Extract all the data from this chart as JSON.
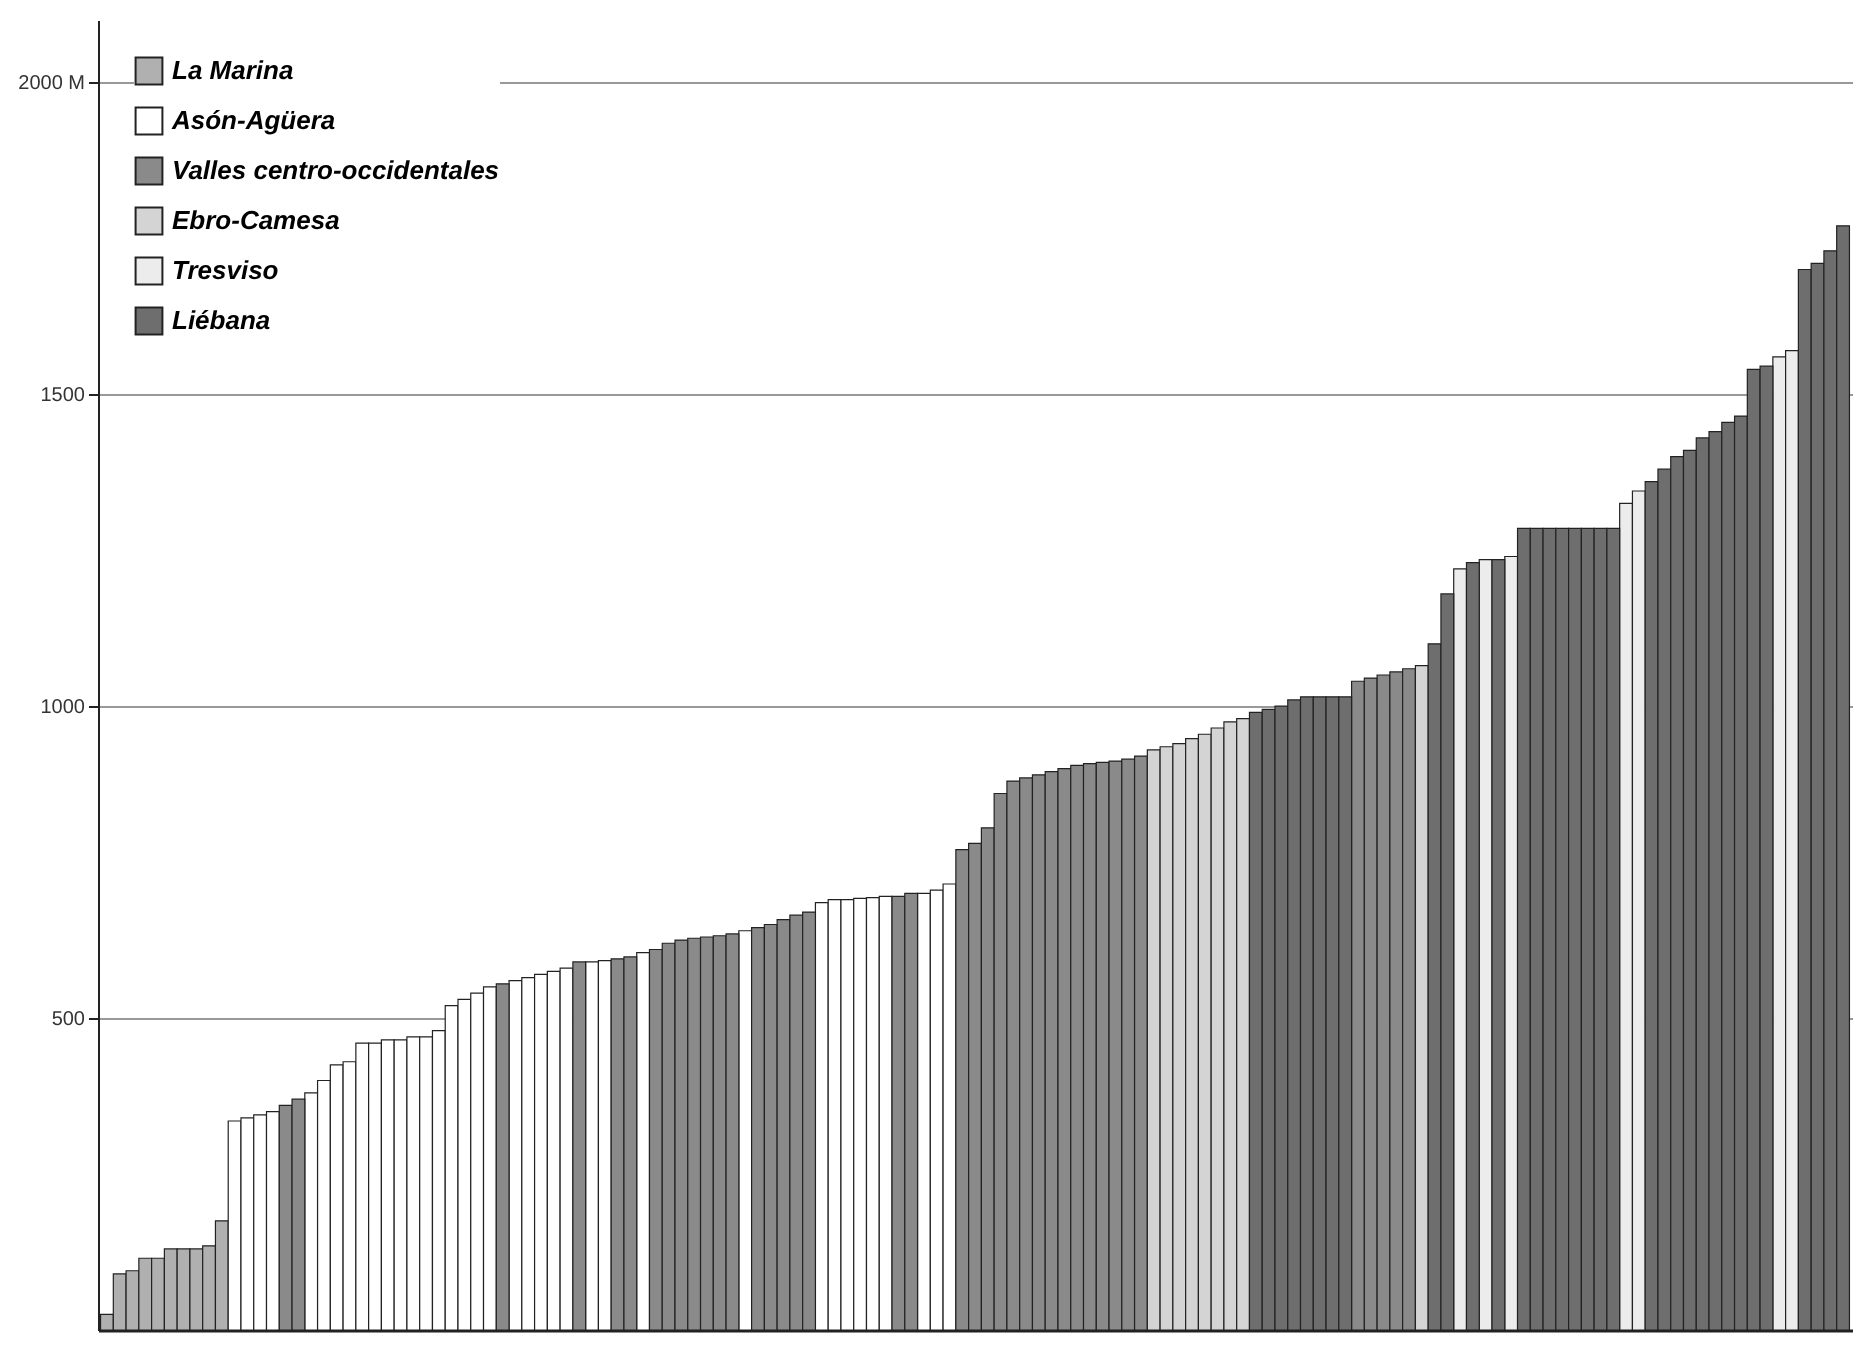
{
  "chart_data": {
    "type": "bar",
    "categories": [
      null,
      null,
      null,
      null,
      null,
      null,
      null,
      null,
      null,
      null,
      null,
      null,
      null,
      null,
      null,
      null,
      null,
      null,
      null,
      null,
      null,
      null,
      null,
      null,
      null,
      null,
      null,
      null,
      null,
      null,
      null,
      null,
      null,
      null,
      null,
      null,
      null,
      null,
      null,
      null,
      null,
      null,
      null,
      null,
      null,
      null,
      null,
      null,
      null,
      null,
      null,
      null,
      null,
      null,
      null,
      null,
      null,
      null,
      null,
      null,
      null,
      null,
      null,
      null,
      null,
      null,
      null,
      null,
      null,
      null,
      null,
      null,
      null,
      null,
      null,
      null,
      null,
      null,
      null,
      null,
      null,
      null,
      null,
      null,
      null,
      null,
      null,
      null,
      null,
      null,
      null,
      null,
      null,
      null,
      null,
      null,
      null,
      null,
      null,
      null,
      null,
      null,
      null,
      null,
      null,
      null,
      null,
      null,
      null,
      null,
      null,
      null,
      null,
      null,
      null,
      null,
      null,
      null,
      null,
      null,
      null,
      null,
      null,
      null,
      null,
      null,
      null,
      null,
      null,
      null,
      null,
      null,
      null,
      null,
      null,
      null,
      null
    ],
    "series": [
      {
        "name": "La Marina",
        "color": "#b0b0b0",
        "values": [
          25,
          90,
          95,
          115,
          115,
          130,
          130,
          130,
          135,
          175,
          null,
          null,
          null,
          null,
          null,
          null,
          null,
          null,
          null,
          null,
          null,
          null,
          null,
          null,
          null,
          null,
          null,
          null,
          null,
          null,
          null,
          null,
          null,
          null,
          null,
          null,
          null,
          null,
          null,
          null,
          null,
          null,
          null,
          null,
          null,
          null,
          null,
          null,
          null,
          null,
          null,
          null,
          null,
          null,
          null,
          null,
          null,
          null,
          null,
          null,
          null,
          null,
          null,
          null,
          null,
          null,
          null,
          null,
          null,
          null,
          null,
          null,
          null,
          null,
          null,
          null,
          null,
          null,
          null,
          null,
          null,
          null,
          null,
          null,
          null,
          null,
          null,
          null,
          null,
          null,
          null,
          null,
          null,
          null,
          null,
          null,
          null,
          null,
          null,
          null,
          null,
          null,
          null,
          null,
          null,
          null,
          null,
          null,
          null,
          null,
          null,
          null,
          null,
          null,
          null,
          null,
          null,
          null,
          null,
          null,
          null,
          null,
          null,
          null,
          null,
          null,
          null,
          null,
          null,
          null,
          null,
          null,
          null,
          null,
          null,
          null,
          null
        ]
      },
      {
        "name": "Asón-Agüera",
        "color": "#ffffff",
        "values": [
          null,
          null,
          null,
          null,
          null,
          null,
          null,
          null,
          null,
          null,
          335,
          340,
          345,
          350,
          null,
          null,
          380,
          400,
          425,
          430,
          460,
          460,
          465,
          465,
          470,
          470,
          480,
          520,
          530,
          540,
          550,
          null,
          560,
          565,
          570,
          575,
          580,
          null,
          590,
          592,
          null,
          null,
          605,
          null,
          null,
          null,
          null,
          null,
          null,
          null,
          640,
          null,
          null,
          null,
          null,
          null,
          685,
          690,
          690,
          692,
          693,
          695,
          null,
          null,
          700,
          705,
          715,
          null,
          null,
          null,
          null,
          null,
          null,
          null,
          null,
          null,
          null,
          null,
          null,
          null,
          null,
          null,
          null,
          null,
          null,
          null,
          null,
          null,
          null,
          null,
          null,
          null,
          null,
          null,
          null,
          null,
          null,
          null,
          null,
          null,
          null,
          null,
          null,
          null,
          null,
          null,
          null,
          null,
          null,
          null,
          null,
          null,
          null,
          null,
          null,
          null,
          null,
          null,
          null,
          null,
          null,
          null,
          null,
          null,
          null,
          null,
          null,
          null,
          null,
          null,
          null,
          null,
          null,
          null,
          null,
          null,
          null
        ]
      },
      {
        "name": "Valles centro-occidentales",
        "color": "#8a8a8a",
        "values": [
          null,
          null,
          null,
          null,
          null,
          null,
          null,
          null,
          null,
          null,
          null,
          null,
          null,
          null,
          360,
          370,
          null,
          null,
          null,
          null,
          null,
          null,
          null,
          null,
          null,
          null,
          null,
          null,
          null,
          null,
          null,
          555,
          null,
          null,
          null,
          null,
          null,
          590,
          null,
          null,
          595,
          598,
          null,
          610,
          620,
          625,
          628,
          630,
          632,
          635,
          null,
          645,
          650,
          658,
          665,
          670,
          null,
          null,
          null,
          null,
          null,
          null,
          695,
          700,
          null,
          null,
          null,
          770,
          780,
          805,
          860,
          880,
          885,
          890,
          895,
          900,
          905,
          908,
          910,
          912,
          915,
          920,
          null,
          null,
          null,
          null,
          null,
          null,
          null,
          null,
          null,
          null,
          null,
          null,
          null,
          null,
          null,
          null,
          1040,
          1045,
          1050,
          1055,
          1060,
          null,
          null,
          null,
          null,
          null,
          null,
          null,
          null,
          null,
          null,
          null,
          null,
          null,
          null,
          null,
          null,
          null,
          null,
          null,
          null,
          null,
          null,
          null,
          null,
          null,
          null,
          null,
          null,
          null,
          null,
          null,
          null,
          null,
          null
        ]
      },
      {
        "name": "Ebro-Camesa",
        "color": "#d4d4d4",
        "values": [
          null,
          null,
          null,
          null,
          null,
          null,
          null,
          null,
          null,
          null,
          null,
          null,
          null,
          null,
          null,
          null,
          null,
          null,
          null,
          null,
          null,
          null,
          null,
          null,
          null,
          null,
          null,
          null,
          null,
          null,
          null,
          null,
          null,
          null,
          null,
          null,
          null,
          null,
          null,
          null,
          null,
          null,
          null,
          null,
          null,
          null,
          null,
          null,
          null,
          null,
          null,
          null,
          null,
          null,
          null,
          null,
          null,
          null,
          null,
          null,
          null,
          null,
          null,
          null,
          null,
          null,
          null,
          null,
          null,
          null,
          null,
          null,
          null,
          null,
          null,
          null,
          null,
          null,
          null,
          null,
          null,
          null,
          930,
          935,
          940,
          948,
          955,
          965,
          975,
          980,
          null,
          null,
          null,
          null,
          null,
          null,
          null,
          null,
          null,
          null,
          null,
          null,
          null,
          1065,
          null,
          null,
          null,
          null,
          null,
          null,
          null,
          null,
          null,
          null,
          null,
          null,
          null,
          null,
          null,
          null,
          null,
          null,
          null,
          null,
          null,
          null,
          null,
          null,
          null,
          null,
          null,
          null,
          null,
          null,
          null,
          null,
          null
        ]
      },
      {
        "name": "Tresviso",
        "color": "#ececec",
        "values": [
          null,
          null,
          null,
          null,
          null,
          null,
          null,
          null,
          null,
          null,
          null,
          null,
          null,
          null,
          null,
          null,
          null,
          null,
          null,
          null,
          null,
          null,
          null,
          null,
          null,
          null,
          null,
          null,
          null,
          null,
          null,
          null,
          null,
          null,
          null,
          null,
          null,
          null,
          null,
          null,
          null,
          null,
          null,
          null,
          null,
          null,
          null,
          null,
          null,
          null,
          null,
          null,
          null,
          null,
          null,
          null,
          null,
          null,
          null,
          null,
          null,
          null,
          null,
          null,
          null,
          null,
          null,
          null,
          null,
          null,
          null,
          null,
          null,
          null,
          null,
          null,
          null,
          null,
          null,
          null,
          null,
          null,
          null,
          null,
          null,
          null,
          null,
          null,
          null,
          null,
          null,
          null,
          null,
          null,
          null,
          null,
          null,
          null,
          null,
          null,
          null,
          null,
          null,
          null,
          null,
          null,
          1220,
          null,
          1235,
          null,
          1240,
          null,
          null,
          null,
          null,
          null,
          null,
          null,
          null,
          1325,
          1345,
          null,
          null,
          null,
          null,
          null,
          null,
          null,
          null,
          null,
          null,
          1560,
          1570,
          null,
          null,
          null,
          null
        ]
      },
      {
        "name": "Liébana",
        "color": "#6e6e6e",
        "values": [
          null,
          null,
          null,
          null,
          null,
          null,
          null,
          null,
          null,
          null,
          null,
          null,
          null,
          null,
          null,
          null,
          null,
          null,
          null,
          null,
          null,
          null,
          null,
          null,
          null,
          null,
          null,
          null,
          null,
          null,
          null,
          null,
          null,
          null,
          null,
          null,
          null,
          null,
          null,
          null,
          null,
          null,
          null,
          null,
          null,
          null,
          null,
          null,
          null,
          null,
          null,
          null,
          null,
          null,
          null,
          null,
          null,
          null,
          null,
          null,
          null,
          null,
          null,
          null,
          null,
          null,
          null,
          null,
          null,
          null,
          null,
          null,
          null,
          null,
          null,
          null,
          null,
          null,
          null,
          null,
          null,
          null,
          null,
          null,
          null,
          null,
          null,
          null,
          null,
          null,
          990,
          995,
          1000,
          1010,
          1015,
          1015,
          1015,
          1015,
          null,
          null,
          null,
          null,
          null,
          null,
          1100,
          1180,
          null,
          1230,
          null,
          1235,
          null,
          1285,
          1285,
          1285,
          1285,
          1285,
          1285,
          1285,
          1285,
          null,
          null,
          1360,
          1380,
          1400,
          1410,
          1430,
          1440,
          1455,
          1465,
          1540,
          1545,
          null,
          null,
          1700,
          1710,
          1730,
          1770
        ]
      }
    ],
    "ylim": [
      0,
      2100
    ],
    "yticks": [
      500,
      1000,
      1500,
      {
        "value": 2000,
        "label": "2000 M"
      }
    ],
    "grid": "y",
    "legend": "top left"
  }
}
